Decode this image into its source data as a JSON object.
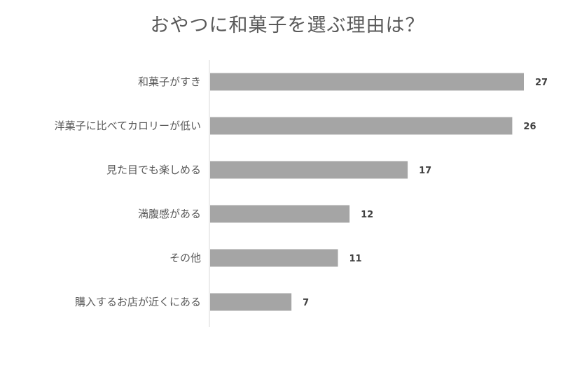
{
  "chart_data": {
    "type": "bar",
    "orientation": "horizontal",
    "title": "おやつに和菓子を選ぶ理由は？",
    "xlabel": "",
    "ylabel": "",
    "categories": [
      "和菓子がすき",
      "洋菓子に比べてカロリーが低い",
      "見た目でも楽しめる",
      "満腹感がある",
      "その他",
      "購入するお店が近くにある"
    ],
    "values": [
      27,
      26,
      17,
      12,
      11,
      7
    ],
    "xlim": [
      0,
      30
    ],
    "grid": false,
    "legend": "none",
    "data_labels": true,
    "colors": {
      "bar": "#a5a5a5",
      "axis": "#d9d9d9",
      "text": "#595959"
    }
  }
}
